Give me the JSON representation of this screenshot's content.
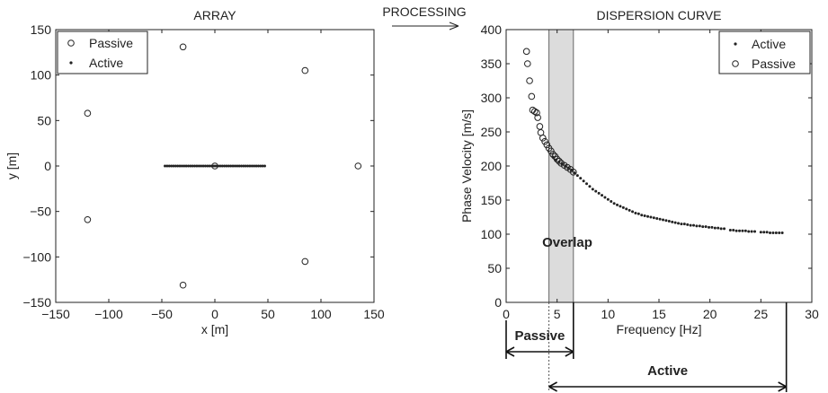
{
  "processing_label": "PROCESSING",
  "chart_data": [
    {
      "type": "scatter",
      "title": "ARRAY",
      "xlabel": "x [m]",
      "ylabel": "y [m]",
      "xlim": [
        -150,
        150
      ],
      "ylim": [
        -150,
        150
      ],
      "xticks": [
        -150,
        -100,
        -50,
        0,
        50,
        100,
        150
      ],
      "yticks": [
        -150,
        -100,
        -50,
        0,
        50,
        100,
        150
      ],
      "xtick_labels": [
        "−150",
        "−100",
        "−50",
        "0",
        "50",
        "100",
        "150"
      ],
      "ytick_labels": [
        "−150",
        "−100",
        "−50",
        "0",
        "50",
        "100",
        "150"
      ],
      "grid": false,
      "legend": "top-left",
      "series": [
        {
          "name": "Passive",
          "marker": "open-circle",
          "x": [
            -30,
            85,
            135,
            85,
            -30,
            -120,
            -120,
            0
          ],
          "y": [
            131,
            105,
            0,
            -105,
            -131,
            -59,
            58,
            0
          ]
        },
        {
          "name": "Active",
          "marker": "dot",
          "x": [
            -47,
            -45,
            -43,
            -41,
            -39,
            -37,
            -35,
            -33,
            -31,
            -29,
            -27,
            -25,
            -23,
            -21,
            -19,
            -17,
            -15,
            -13,
            -11,
            -9,
            -7,
            -5,
            -3,
            -1,
            1,
            3,
            5,
            7,
            9,
            11,
            13,
            15,
            17,
            19,
            21,
            23,
            25,
            27,
            29,
            31,
            33,
            35,
            37,
            39,
            41,
            43,
            45,
            47
          ],
          "y": [
            0,
            0,
            0,
            0,
            0,
            0,
            0,
            0,
            0,
            0,
            0,
            0,
            0,
            0,
            0,
            0,
            0,
            0,
            0,
            0,
            0,
            0,
            0,
            0,
            0,
            0,
            0,
            0,
            0,
            0,
            0,
            0,
            0,
            0,
            0,
            0,
            0,
            0,
            0,
            0,
            0,
            0,
            0,
            0,
            0,
            0,
            0,
            0
          ]
        }
      ]
    },
    {
      "type": "scatter",
      "title": "DISPERSION CURVE",
      "xlabel": "Frequency [Hz]",
      "ylabel": "Phase Velocity [m/s]",
      "xlim": [
        0,
        30
      ],
      "ylim": [
        0,
        400
      ],
      "xticks": [
        0,
        5,
        10,
        15,
        20,
        25,
        30
      ],
      "yticks": [
        0,
        50,
        100,
        150,
        200,
        250,
        300,
        350,
        400
      ],
      "xtick_labels": [
        "0",
        "5",
        "10",
        "15",
        "20",
        "25",
        "30"
      ],
      "ytick_labels": [
        "0",
        "50",
        "100",
        "150",
        "200",
        "250",
        "300",
        "350",
        "400"
      ],
      "grid": false,
      "legend": "top-right",
      "overlap_band": [
        4.2,
        6.6
      ],
      "annotations": [
        {
          "text": "Overlap",
          "x": 6.0,
          "y": 88
        },
        {
          "text": "Passive",
          "span": [
            0,
            6.6
          ]
        },
        {
          "text": "Active",
          "span": [
            4.2,
            27.5
          ]
        }
      ],
      "series": [
        {
          "name": "Active",
          "marker": "dot",
          "x": [
            4.6,
            4.9,
            5.2,
            5.5,
            5.8,
            6.1,
            6.4,
            6.7,
            7.0,
            7.3,
            7.6,
            7.9,
            8.2,
            8.5,
            8.8,
            9.1,
            9.4,
            9.7,
            10.0,
            10.3,
            10.6,
            10.9,
            11.2,
            11.5,
            11.8,
            12.1,
            12.4,
            12.7,
            13.0,
            13.3,
            13.6,
            13.9,
            14.2,
            14.5,
            14.8,
            15.1,
            15.4,
            15.7,
            16.0,
            16.3,
            16.6,
            16.9,
            17.2,
            17.5,
            17.8,
            18.1,
            18.4,
            18.7,
            19.0,
            19.3,
            19.6,
            19.9,
            20.2,
            20.5,
            20.8,
            21.1,
            21.4,
            22.0,
            22.3,
            22.6,
            22.9,
            23.2,
            23.5,
            23.8,
            24.1,
            24.4,
            25.0,
            25.3,
            25.6,
            25.9,
            26.2,
            26.5,
            26.8,
            27.1
          ],
          "y": [
            213,
            209,
            206,
            203,
            200,
            197,
            194,
            190,
            186,
            182,
            178,
            174,
            170,
            166,
            163,
            160,
            157,
            154,
            151,
            148,
            145,
            143,
            141,
            139,
            137,
            135,
            133,
            131,
            130,
            128,
            127,
            126,
            125,
            124,
            123,
            122,
            121,
            120,
            119,
            118,
            117,
            116,
            115,
            115,
            114,
            113,
            113,
            112,
            112,
            111,
            111,
            110,
            110,
            109,
            109,
            108,
            108,
            106,
            106,
            105,
            105,
            105,
            105,
            104,
            104,
            104,
            103,
            103,
            103,
            102,
            102,
            102,
            102,
            102
          ]
        },
        {
          "name": "Passive",
          "marker": "open-circle",
          "x": [
            2.0,
            2.1,
            2.3,
            2.5,
            2.6,
            2.8,
            3.0,
            3.1,
            3.3,
            3.4,
            3.6,
            3.8,
            4.0,
            4.2,
            4.4,
            4.6,
            4.8,
            5.0,
            5.2,
            5.4,
            5.7,
            6.0,
            6.3,
            6.6
          ],
          "y": [
            368,
            350,
            325,
            302,
            282,
            280,
            278,
            271,
            258,
            249,
            241,
            236,
            231,
            226,
            222,
            217,
            214,
            210,
            207,
            204,
            201,
            198,
            195,
            191
          ]
        }
      ]
    }
  ]
}
